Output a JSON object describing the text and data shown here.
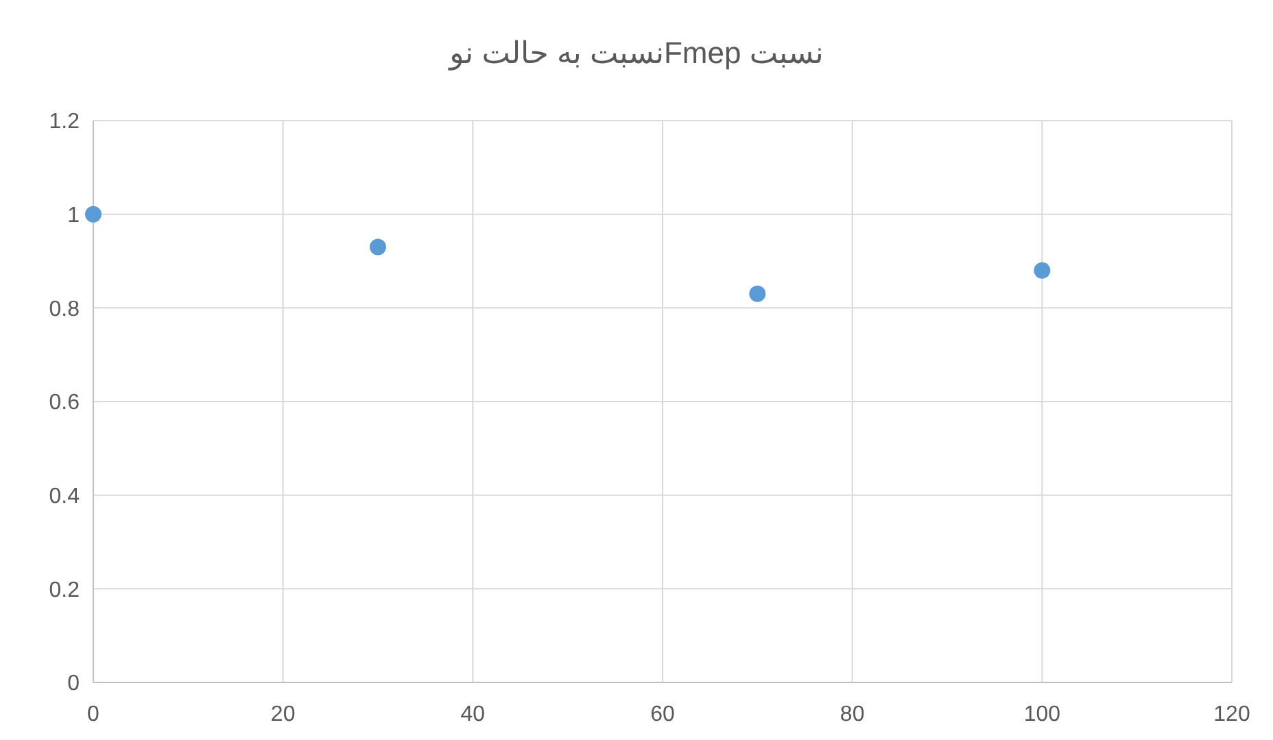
{
  "chart_data": {
    "type": "scatter",
    "title": "نسبت  Fmepنسبت به حالت نو",
    "x": [
      0,
      30,
      70,
      100
    ],
    "series": [
      {
        "color": "#5b9bd5",
        "values": [
          1,
          0.93,
          0.83,
          0.88
        ]
      }
    ],
    "xlim": [
      0,
      120
    ],
    "xticks": [
      0,
      20,
      40,
      60,
      80,
      100,
      120
    ],
    "ylim": [
      0,
      1.2
    ],
    "yticks": [
      0,
      0.2,
      0.4,
      0.6,
      0.8,
      1,
      1.2
    ],
    "grid": true,
    "marker": "circle"
  }
}
